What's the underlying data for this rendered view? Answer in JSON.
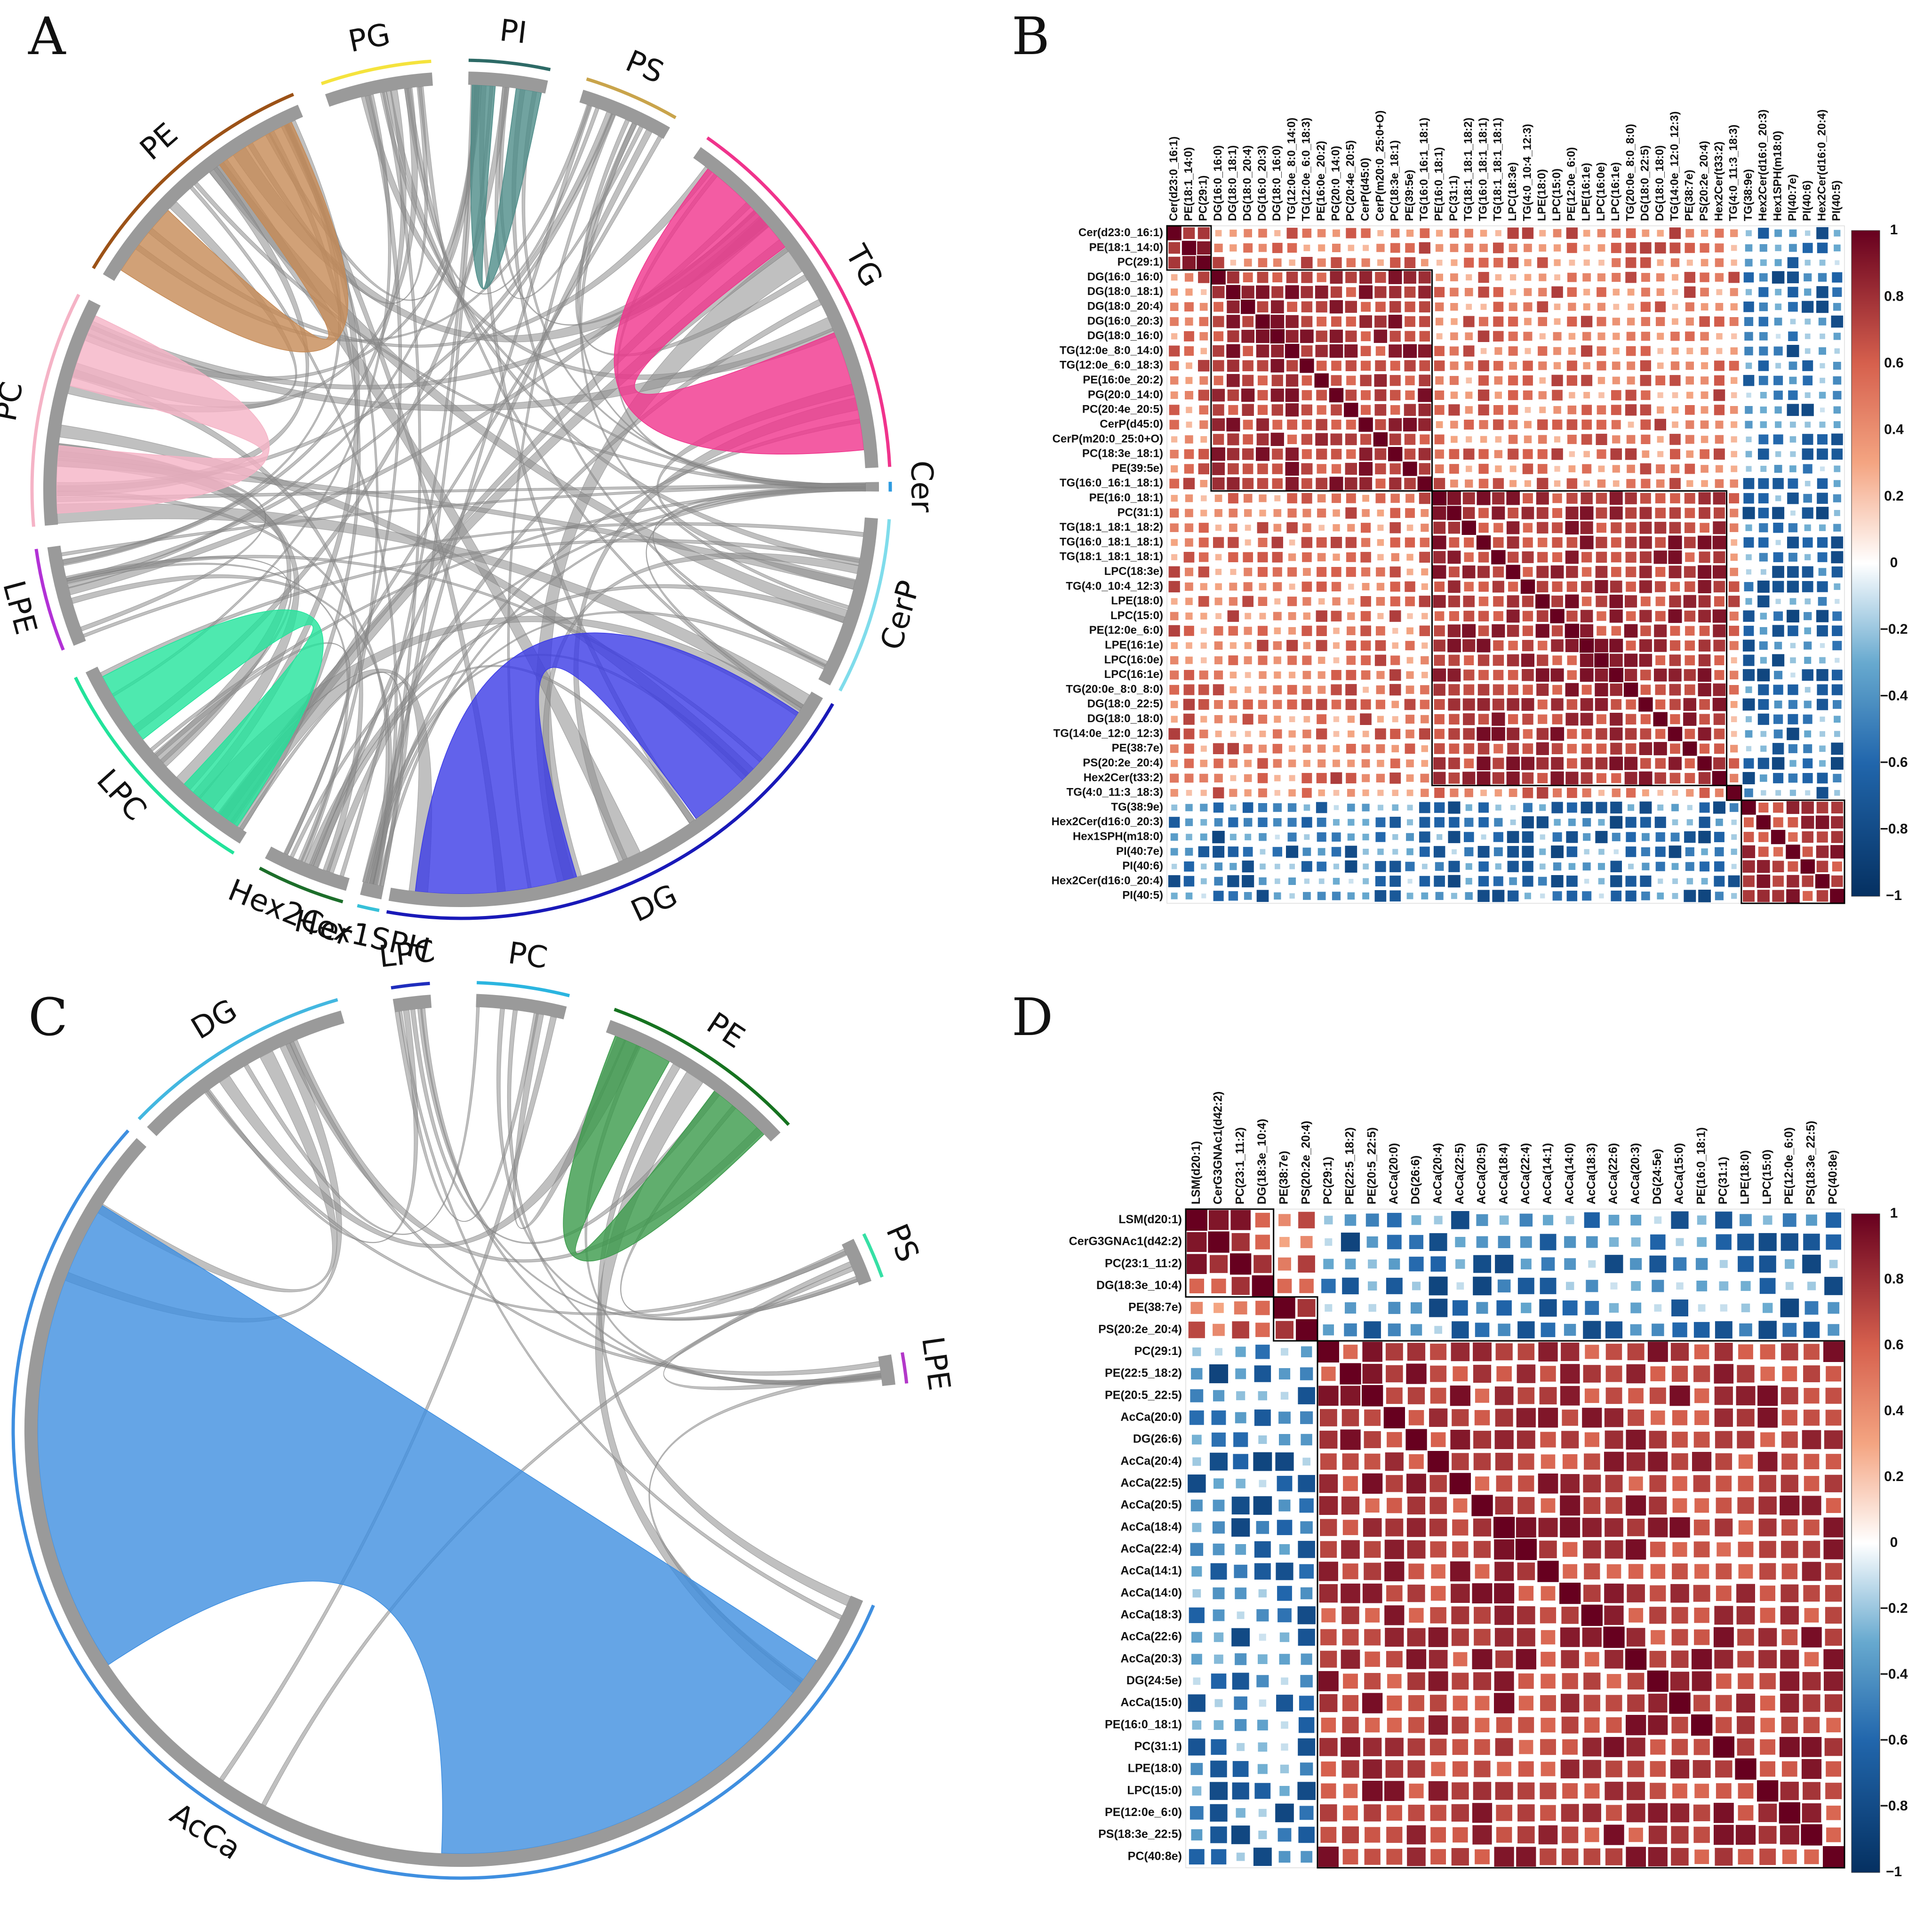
{
  "panels": {
    "A": {
      "letter": "A"
    },
    "B": {
      "letter": "B"
    },
    "C": {
      "letter": "C"
    },
    "D": {
      "letter": "D"
    }
  },
  "chart_data": [
    {
      "id": "A",
      "type": "chord",
      "groups": [
        {
          "name": "PG",
          "color": "#f5e33d",
          "start": -19,
          "end": -4
        },
        {
          "name": "PI",
          "color": "#2d6a66",
          "start": 1,
          "end": 12
        },
        {
          "name": "PS",
          "color": "#c9a44b",
          "start": 17,
          "end": 30
        },
        {
          "name": "TG",
          "color": "#f0338c",
          "start": 35,
          "end": 87
        },
        {
          "name": "Cer",
          "color": "#2d9be0",
          "start": 89,
          "end": 90.3
        },
        {
          "name": "CerP",
          "color": "#7fdceb",
          "start": 94,
          "end": 118
        },
        {
          "name": "DG",
          "color": "#1919b8",
          "start": 120,
          "end": 190
        },
        {
          "name": "Hex1SPH",
          "color": "#36c0d8",
          "start": 191,
          "end": 194
        },
        {
          "name": "Hex2Cer",
          "color": "#1c6e2a",
          "start": 196,
          "end": 208
        },
        {
          "name": "LPC",
          "color": "#22e39b",
          "start": 212,
          "end": 244
        },
        {
          "name": "LPE",
          "color": "#b231d6",
          "start": 248,
          "end": 262
        },
        {
          "name": "PC",
          "color": "#f5b3c6",
          "start": 265,
          "end": 297
        },
        {
          "name": "PE",
          "color": "#9c5217",
          "start": 301,
          "end": 337
        }
      ],
      "highlighted_links": [
        {
          "from": "TG",
          "to": "TG",
          "color": "#f0338c"
        },
        {
          "from": "DG",
          "to": "DG",
          "color": "#3b3be6"
        },
        {
          "from": "LPC",
          "to": "LPC",
          "color": "#22e39b"
        },
        {
          "from": "PE",
          "to": "PE",
          "color": "#c58a55"
        },
        {
          "from": "PC",
          "to": "PC",
          "color": "#f5b3c6"
        },
        {
          "from": "PI",
          "to": "PI",
          "color": "#4d8c88"
        }
      ]
    },
    {
      "id": "B",
      "type": "heatmap",
      "row_labels": [
        "Cer(d23:0_16:1)",
        "PE(18:1_14:0)",
        "PC(29:1)",
        "DG(16:0_16:0)",
        "DG(18:0_18:1)",
        "DG(18:0_20:4)",
        "DG(16:0_20:3)",
        "DG(18:0_16:0)",
        "TG(12:0e_8:0_14:0)",
        "TG(12:0e_6:0_18:3)",
        "PE(16:0e_20:2)",
        "PG(20:0_14:0)",
        "PC(20:4e_20:5)",
        "CerP(d45:0)",
        "CerP(m20:0_25:0+O)",
        "PC(18:3e_18:1)",
        "PE(39:5e)",
        "TG(16:0_16:1_18:1)",
        "PE(16:0_18:1)",
        "PC(31:1)",
        "TG(18:1_18:1_18:2)",
        "TG(16:0_18:1_18:1)",
        "TG(18:1_18:1_18:1)",
        "LPC(18:3e)",
        "TG(4:0_10:4_12:3)",
        "LPE(18:0)",
        "LPC(15:0)",
        "PE(12:0e_6:0)",
        "LPE(16:1e)",
        "LPC(16:0e)",
        "LPC(16:1e)",
        "TG(20:0e_8:0_8:0)",
        "DG(18:0_22:5)",
        "DG(18:0_18:0)",
        "TG(14:0e_12:0_12:3)",
        "PE(38:7e)",
        "PS(20:2e_20:4)",
        "Hex2Cer(t33:2)",
        "TG(4:0_11:3_18:3)",
        "TG(38:9e)",
        "Hex2Cer(d16:0_20:3)",
        "Hex1SPH(m18:0)",
        "PI(40:7e)",
        "PI(40:6)",
        "Hex2Cer(d16:0_20:4)",
        "PI(40:5)"
      ],
      "clusters": [
        [
          0,
          2
        ],
        [
          3,
          17
        ],
        [
          18,
          37
        ],
        [
          38,
          38
        ],
        [
          39,
          45
        ]
      ],
      "colorbar_ticks": [
        "1",
        "0.8",
        "0.6",
        "0.4",
        "0.2",
        "0",
        "−0.2",
        "−0.4",
        "−0.6",
        "−0.8",
        "−1"
      ],
      "value_range": [
        -1,
        1
      ]
    },
    {
      "id": "C",
      "type": "chord",
      "groups": [
        {
          "name": "AcCa",
          "color": "#3f8fe0",
          "start": 113,
          "end": 312
        },
        {
          "name": "DG",
          "color": "#43b7e0",
          "start": 314,
          "end": 344
        },
        {
          "name": "LPC",
          "color": "#1f2dbd",
          "start": 351,
          "end": 356
        },
        {
          "name": "PC",
          "color": "#2bb5e0",
          "start": 2,
          "end": 14
        },
        {
          "name": "PE",
          "color": "#167320",
          "start": 20,
          "end": 47
        },
        {
          "name": "PS",
          "color": "#36e0a5",
          "start": 64,
          "end": 70
        },
        {
          "name": "LPE",
          "color": "#b338c9",
          "start": 80,
          "end": 84
        }
      ],
      "highlighted_links": [
        {
          "from": "AcCa",
          "to": "AcCa",
          "color": "#3f8fe0"
        },
        {
          "from": "PE",
          "to": "PE",
          "color": "#3a9a4a"
        }
      ]
    },
    {
      "id": "D",
      "type": "heatmap",
      "row_labels": [
        "LSM(d20:1)",
        "CerG3GNAc1(d42:2)",
        "PC(23:1_11:2)",
        "DG(18:3e_10:4)",
        "PE(38:7e)",
        "PS(20:2e_20:4)",
        "PC(29:1)",
        "PE(22:5_18:2)",
        "PE(20:5_22:5)",
        "AcCa(20:0)",
        "DG(26:6)",
        "AcCa(20:4)",
        "AcCa(22:5)",
        "AcCa(20:5)",
        "AcCa(18:4)",
        "AcCa(22:4)",
        "AcCa(14:1)",
        "AcCa(14:0)",
        "AcCa(18:3)",
        "AcCa(22:6)",
        "AcCa(20:3)",
        "DG(24:5e)",
        "AcCa(15:0)",
        "PE(16:0_18:1)",
        "PC(31:1)",
        "LPE(18:0)",
        "LPC(15:0)",
        "PE(12:0e_6:0)",
        "PS(18:3e_22:5)",
        "PC(40:8e)"
      ],
      "clusters": [
        [
          0,
          3
        ],
        [
          4,
          5
        ],
        [
          6,
          29
        ]
      ],
      "colorbar_ticks": [
        "1",
        "0.8",
        "0.6",
        "0.4",
        "0.2",
        "0",
        "−0.2",
        "−0.4",
        "−0.6",
        "−0.8",
        "−1"
      ],
      "value_range": [
        -1,
        1
      ]
    }
  ]
}
